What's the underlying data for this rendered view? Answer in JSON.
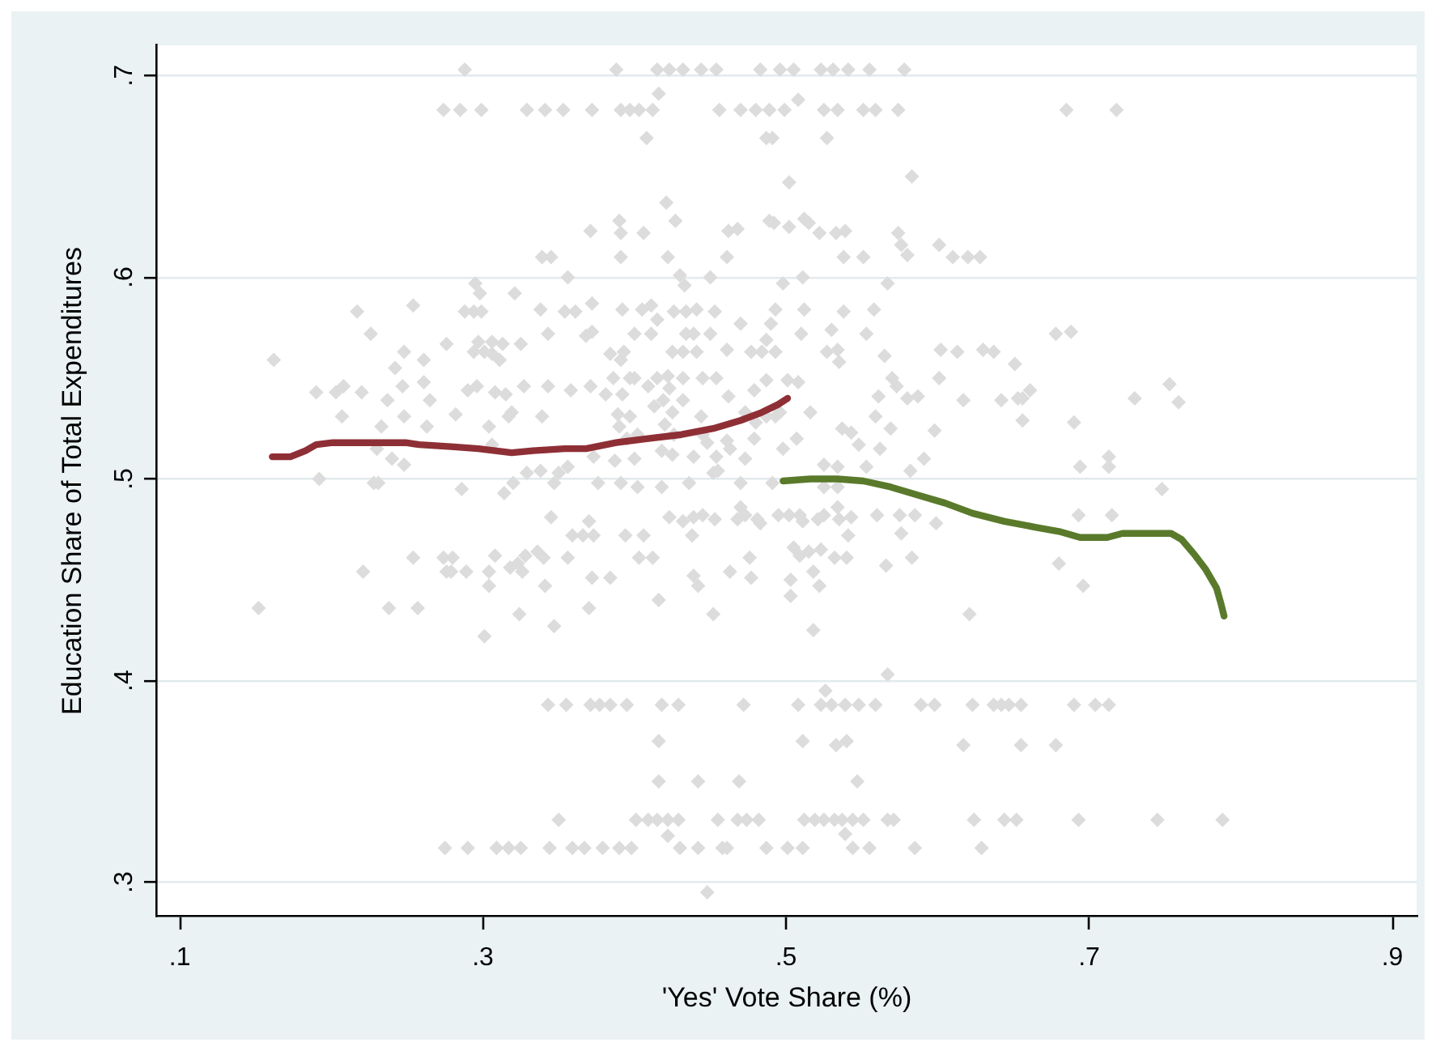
{
  "chart_data": {
    "type": "scatter",
    "xlabel": "'Yes' Vote Share (%)",
    "ylabel": "Education Share of Total Expenditures",
    "xlim": [
      0.085,
      0.916
    ],
    "ylim": [
      0.283,
      0.715
    ],
    "xticks": [
      {
        "value": 0.1,
        "label": ".1"
      },
      {
        "value": 0.3,
        "label": ".3"
      },
      {
        "value": 0.5,
        "label": ".5"
      },
      {
        "value": 0.7,
        "label": ".7"
      },
      {
        "value": 0.9,
        "label": ".9"
      }
    ],
    "yticks": [
      {
        "value": 0.3,
        "label": ".3"
      },
      {
        "value": 0.4,
        "label": ".4"
      },
      {
        "value": 0.5,
        "label": ".5"
      },
      {
        "value": 0.6,
        "label": ".6"
      },
      {
        "value": 0.7,
        "label": ".7"
      }
    ],
    "grid": "y",
    "legend": false,
    "series": [
      {
        "type": "scatter",
        "color": "#dcdcdc",
        "marker": "diamond",
        "x": [
          0.288,
          0.274,
          0.285,
          0.299,
          0.329,
          0.341,
          0.353,
          0.339,
          0.345,
          0.356,
          0.295,
          0.298,
          0.321,
          0.338,
          0.217,
          0.254,
          0.288,
          0.294,
          0.299,
          0.354,
          0.361,
          0.226,
          0.343,
          0.276,
          0.297,
          0.306,
          0.313,
          0.325,
          0.248,
          0.294,
          0.301,
          0.306,
          0.162,
          0.261,
          0.242,
          0.311,
          0.19,
          0.203,
          0.208,
          0.22,
          0.247,
          0.261,
          0.29,
          0.296,
          0.308,
          0.315,
          0.327,
          0.343,
          0.358,
          0.237,
          0.265,
          0.207,
          0.248,
          0.282,
          0.317,
          0.319,
          0.339,
          0.233,
          0.263,
          0.304,
          0.23,
          0.24,
          0.248,
          0.192,
          0.228,
          0.231,
          0.286,
          0.306,
          0.329,
          0.338,
          0.347,
          0.35,
          0.356,
          0.314,
          0.32,
          0.345,
          0.359,
          0.366,
          0.373,
          0.254,
          0.274,
          0.28,
          0.276,
          0.279,
          0.289,
          0.221,
          0.308,
          0.304,
          0.304,
          0.318,
          0.323,
          0.326,
          0.328,
          0.336,
          0.34,
          0.356,
          0.341,
          0.372,
          0.152,
          0.238,
          0.257,
          0.324,
          0.347,
          0.301,
          0.37,
          0.343,
          0.355,
          0.371,
          0.35,
          0.275,
          0.29,
          0.309,
          0.317,
          0.325,
          0.344,
          0.359,
          0.367,
          0.388,
          0.415,
          0.423,
          0.432,
          0.444,
          0.454,
          0.483,
          0.496,
          0.505,
          0.523,
          0.531,
          0.541,
          0.555,
          0.578,
          0.372,
          0.391,
          0.397,
          0.403,
          0.412,
          0.456,
          0.47,
          0.48,
          0.489,
          0.499,
          0.525,
          0.534,
          0.551,
          0.559,
          0.574,
          0.416,
          0.508,
          0.408,
          0.487,
          0.491,
          0.527,
          0.502,
          0.583,
          0.421,
          0.371,
          0.39,
          0.391,
          0.406,
          0.427,
          0.462,
          0.468,
          0.489,
          0.492,
          0.502,
          0.512,
          0.515,
          0.522,
          0.533,
          0.539,
          0.574,
          0.576,
          0.58,
          0.601,
          0.61,
          0.62,
          0.628,
          0.391,
          0.422,
          0.461,
          0.538,
          0.551,
          0.43,
          0.433,
          0.45,
          0.498,
          0.511,
          0.567,
          0.372,
          0.392,
          0.405,
          0.411,
          0.415,
          0.426,
          0.434,
          0.441,
          0.453,
          0.47,
          0.493,
          0.49,
          0.512,
          0.538,
          0.558,
          0.368,
          0.372,
          0.4,
          0.411,
          0.434,
          0.439,
          0.45,
          0.487,
          0.51,
          0.53,
          0.553,
          0.384,
          0.391,
          0.393,
          0.425,
          0.432,
          0.441,
          0.461,
          0.477,
          0.484,
          0.493,
          0.527,
          0.534,
          0.535,
          0.565,
          0.602,
          0.613,
          0.63,
          0.637,
          0.651,
          0.371,
          0.386,
          0.381,
          0.392,
          0.397,
          0.4,
          0.409,
          0.415,
          0.422,
          0.423,
          0.432,
          0.445,
          0.454,
          0.479,
          0.487,
          0.501,
          0.508,
          0.57,
          0.573,
          0.58,
          0.587,
          0.561,
          0.601,
          0.617,
          0.642,
          0.653,
          0.389,
          0.397,
          0.413,
          0.419,
          0.425,
          0.432,
          0.444,
          0.462,
          0.473,
          0.48,
          0.487,
          0.493,
          0.496,
          0.516,
          0.559,
          0.537,
          0.543,
          0.569,
          0.598,
          0.39,
          0.395,
          0.402,
          0.42,
          0.426,
          0.445,
          0.448,
          0.461,
          0.463,
          0.479,
          0.507,
          0.548,
          0.562,
          0.591,
          0.373,
          0.387,
          0.4,
          0.418,
          0.425,
          0.439,
          0.455,
          0.454,
          0.473,
          0.498,
          0.525,
          0.534,
          0.553,
          0.582,
          0.391,
          0.402,
          0.418,
          0.376,
          0.436,
          0.452,
          0.47,
          0.491,
          0.525,
          0.534,
          0.37,
          0.394,
          0.406,
          0.423,
          0.432,
          0.439,
          0.445,
          0.453,
          0.438,
          0.47,
          0.473,
          0.468,
          0.481,
          0.483,
          0.495,
          0.502,
          0.509,
          0.511,
          0.521,
          0.525,
          0.534,
          0.535,
          0.543,
          0.541,
          0.56,
          0.575,
          0.585,
          0.599,
          0.576,
          0.403,
          0.412,
          0.384,
          0.476,
          0.463,
          0.477,
          0.505,
          0.509,
          0.515,
          0.523,
          0.532,
          0.54,
          0.439,
          0.442,
          0.503,
          0.518,
          0.522,
          0.503,
          0.566,
          0.583,
          0.416,
          0.452,
          0.518,
          0.621,
          0.567,
          0.526,
          0.377,
          0.384,
          0.395,
          0.418,
          0.429,
          0.472,
          0.508,
          0.523,
          0.53,
          0.539,
          0.548,
          0.559,
          0.589,
          0.598,
          0.623,
          0.637,
          0.642,
          0.647,
          0.655,
          0.69,
          0.704,
          0.713,
          0.416,
          0.511,
          0.533,
          0.54,
          0.617,
          0.655,
          0.678,
          0.416,
          0.442,
          0.469,
          0.547,
          0.401,
          0.409,
          0.415,
          0.422,
          0.429,
          0.455,
          0.468,
          0.474,
          0.482,
          0.512,
          0.519,
          0.525,
          0.532,
          0.537,
          0.544,
          0.551,
          0.567,
          0.571,
          0.624,
          0.644,
          0.652,
          0.693,
          0.745,
          0.788,
          0.422,
          0.539,
          0.379,
          0.39,
          0.398,
          0.43,
          0.442,
          0.458,
          0.461,
          0.487,
          0.501,
          0.511,
          0.544,
          0.555,
          0.585,
          0.629,
          0.448,
          0.685,
          0.718,
          0.678,
          0.688,
          0.753,
          0.656,
          0.661,
          0.73,
          0.759,
          0.656,
          0.69,
          0.694,
          0.713,
          0.713,
          0.748,
          0.693,
          0.715,
          0.68,
          0.696
        ],
        "values": [
          0.703,
          0.683,
          0.683,
          0.683,
          0.683,
          0.683,
          0.683,
          0.61,
          0.61,
          0.6,
          0.597,
          0.592,
          0.592,
          0.584,
          0.583,
          0.586,
          0.583,
          0.583,
          0.583,
          0.583,
          0.583,
          0.572,
          0.572,
          0.567,
          0.568,
          0.568,
          0.567,
          0.567,
          0.563,
          0.563,
          0.563,
          0.562,
          0.559,
          0.559,
          0.555,
          0.559,
          0.543,
          0.543,
          0.546,
          0.543,
          0.546,
          0.548,
          0.544,
          0.546,
          0.543,
          0.542,
          0.546,
          0.546,
          0.544,
          0.539,
          0.539,
          0.531,
          0.531,
          0.532,
          0.531,
          0.533,
          0.531,
          0.526,
          0.526,
          0.526,
          0.515,
          0.51,
          0.507,
          0.5,
          0.498,
          0.498,
          0.495,
          0.517,
          0.503,
          0.504,
          0.498,
          0.503,
          0.506,
          0.493,
          0.498,
          0.481,
          0.472,
          0.472,
          0.472,
          0.461,
          0.461,
          0.461,
          0.454,
          0.454,
          0.454,
          0.454,
          0.462,
          0.454,
          0.447,
          0.456,
          0.458,
          0.454,
          0.462,
          0.464,
          0.461,
          0.461,
          0.447,
          0.451,
          0.436,
          0.436,
          0.436,
          0.433,
          0.427,
          0.422,
          0.436,
          0.388,
          0.388,
          0.388,
          0.331,
          0.317,
          0.317,
          0.317,
          0.317,
          0.317,
          0.317,
          0.317,
          0.317,
          0.703,
          0.703,
          0.703,
          0.703,
          0.703,
          0.703,
          0.703,
          0.703,
          0.703,
          0.703,
          0.703,
          0.703,
          0.703,
          0.703,
          0.683,
          0.683,
          0.683,
          0.683,
          0.683,
          0.683,
          0.683,
          0.683,
          0.683,
          0.683,
          0.683,
          0.683,
          0.683,
          0.683,
          0.683,
          0.691,
          0.688,
          0.669,
          0.669,
          0.669,
          0.669,
          0.647,
          0.65,
          0.637,
          0.623,
          0.628,
          0.622,
          0.622,
          0.628,
          0.623,
          0.624,
          0.628,
          0.627,
          0.625,
          0.629,
          0.627,
          0.622,
          0.622,
          0.623,
          0.622,
          0.616,
          0.611,
          0.616,
          0.61,
          0.61,
          0.61,
          0.61,
          0.61,
          0.61,
          0.61,
          0.61,
          0.601,
          0.596,
          0.6,
          0.597,
          0.6,
          0.597,
          0.587,
          0.584,
          0.584,
          0.586,
          0.579,
          0.583,
          0.583,
          0.584,
          0.583,
          0.577,
          0.584,
          0.577,
          0.584,
          0.583,
          0.584,
          0.571,
          0.573,
          0.572,
          0.572,
          0.572,
          0.572,
          0.572,
          0.569,
          0.572,
          0.574,
          0.572,
          0.562,
          0.559,
          0.563,
          0.563,
          0.563,
          0.563,
          0.564,
          0.563,
          0.563,
          0.563,
          0.563,
          0.564,
          0.558,
          0.561,
          0.564,
          0.563,
          0.564,
          0.563,
          0.557,
          0.546,
          0.55,
          0.542,
          0.542,
          0.55,
          0.55,
          0.546,
          0.55,
          0.551,
          0.545,
          0.55,
          0.55,
          0.55,
          0.544,
          0.549,
          0.549,
          0.548,
          0.55,
          0.546,
          0.54,
          0.541,
          0.541,
          0.55,
          0.539,
          0.539,
          0.54,
          0.532,
          0.531,
          0.536,
          0.539,
          0.533,
          0.539,
          0.531,
          0.541,
          0.533,
          0.528,
          0.531,
          0.531,
          0.533,
          0.533,
          0.531,
          0.525,
          0.523,
          0.525,
          0.524,
          0.526,
          0.52,
          0.522,
          0.527,
          0.522,
          0.522,
          0.518,
          0.519,
          0.515,
          0.52,
          0.52,
          0.517,
          0.515,
          0.51,
          0.511,
          0.509,
          0.51,
          0.514,
          0.512,
          0.511,
          0.504,
          0.511,
          0.51,
          0.515,
          0.507,
          0.506,
          0.506,
          0.504,
          0.498,
          0.496,
          0.496,
          0.498,
          0.498,
          0.503,
          0.498,
          0.498,
          0.496,
          0.496,
          0.479,
          0.472,
          0.472,
          0.481,
          0.479,
          0.481,
          0.482,
          0.48,
          0.472,
          0.486,
          0.482,
          0.48,
          0.48,
          0.478,
          0.482,
          0.482,
          0.482,
          0.479,
          0.48,
          0.482,
          0.486,
          0.48,
          0.481,
          0.472,
          0.482,
          0.482,
          0.482,
          0.478,
          0.473,
          0.461,
          0.461,
          0.451,
          0.461,
          0.454,
          0.451,
          0.466,
          0.462,
          0.464,
          0.465,
          0.461,
          0.461,
          0.452,
          0.447,
          0.45,
          0.454,
          0.447,
          0.442,
          0.457,
          0.461,
          0.44,
          0.433,
          0.425,
          0.433,
          0.403,
          0.395,
          0.388,
          0.388,
          0.388,
          0.388,
          0.388,
          0.388,
          0.388,
          0.388,
          0.388,
          0.388,
          0.388,
          0.388,
          0.388,
          0.388,
          0.388,
          0.388,
          0.388,
          0.388,
          0.388,
          0.388,
          0.388,
          0.388,
          0.37,
          0.37,
          0.368,
          0.37,
          0.368,
          0.368,
          0.368,
          0.35,
          0.35,
          0.35,
          0.35,
          0.331,
          0.331,
          0.331,
          0.331,
          0.331,
          0.331,
          0.331,
          0.331,
          0.331,
          0.331,
          0.331,
          0.331,
          0.331,
          0.331,
          0.331,
          0.331,
          0.331,
          0.331,
          0.331,
          0.331,
          0.331,
          0.331,
          0.331,
          0.331,
          0.323,
          0.324,
          0.317,
          0.317,
          0.317,
          0.317,
          0.317,
          0.317,
          0.317,
          0.317,
          0.317,
          0.317,
          0.317,
          0.317,
          0.317,
          0.317,
          0.295,
          0.683,
          0.683,
          0.572,
          0.573,
          0.547,
          0.54,
          0.544,
          0.54,
          0.538,
          0.529,
          0.528,
          0.506,
          0.511,
          0.506,
          0.495,
          0.482,
          0.482,
          0.458,
          0.447
        ]
      },
      {
        "type": "line",
        "color": "#8e2f36",
        "line_style": "solid",
        "x": [
          0.161,
          0.173,
          0.183,
          0.19,
          0.201,
          0.226,
          0.249,
          0.258,
          0.279,
          0.297,
          0.319,
          0.333,
          0.354,
          0.368,
          0.388,
          0.409,
          0.431,
          0.452,
          0.47,
          0.484,
          0.495,
          0.501
        ],
        "values": [
          0.511,
          0.511,
          0.514,
          0.517,
          0.518,
          0.518,
          0.518,
          0.517,
          0.516,
          0.515,
          0.513,
          0.514,
          0.515,
          0.515,
          0.518,
          0.52,
          0.522,
          0.525,
          0.529,
          0.533,
          0.537,
          0.54
        ]
      },
      {
        "type": "line",
        "color": "#5a7a2b",
        "line_style": "solid",
        "x": [
          0.498,
          0.516,
          0.534,
          0.551,
          0.569,
          0.587,
          0.605,
          0.623,
          0.644,
          0.665,
          0.68,
          0.694,
          0.712,
          0.722,
          0.737,
          0.754,
          0.761,
          0.77,
          0.777,
          0.784,
          0.787,
          0.789
        ],
        "values": [
          0.499,
          0.5,
          0.5,
          0.499,
          0.496,
          0.492,
          0.488,
          0.483,
          0.479,
          0.476,
          0.474,
          0.471,
          0.471,
          0.473,
          0.473,
          0.473,
          0.47,
          0.462,
          0.455,
          0.446,
          0.438,
          0.432
        ]
      }
    ]
  }
}
